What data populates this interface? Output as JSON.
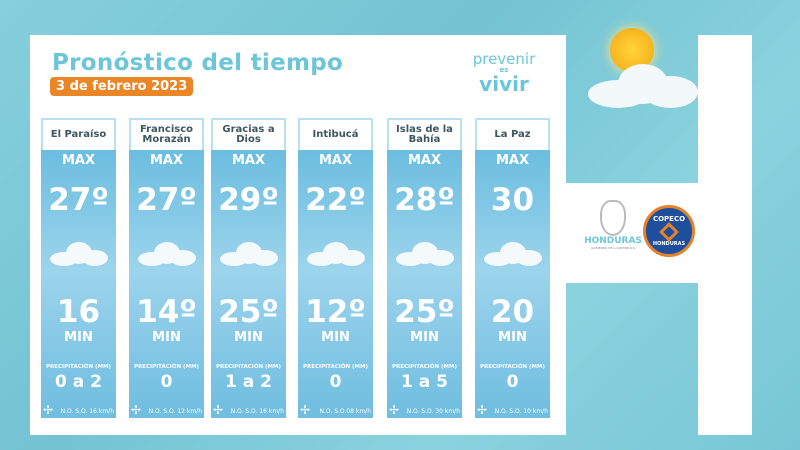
{
  "header": {
    "title": "Pronóstico del tiempo",
    "date": "3 de febrero 2023"
  },
  "brand": {
    "line1": "prevenir",
    "line2": "es",
    "line3": "vivir"
  },
  "labels": {
    "max": "MAX",
    "min": "MIN",
    "precip": "PRECIPITACIÓN (MM)"
  },
  "columns": [
    {
      "name": "El Paraíso",
      "max": "27º",
      "min": "16",
      "precip": "0 a 2",
      "wind": "N.O. S.O. 16 km/h"
    },
    {
      "name": "Francisco Morazán",
      "max": "27º",
      "min": "14º",
      "precip": "0",
      "wind": "N.O. S.O. 12 km/h"
    },
    {
      "name": "Gracias a Dios",
      "max": "29º",
      "min": "25º",
      "precip": "1 a 2",
      "wind": "N.O. S.O. 16 km/h"
    },
    {
      "name": "Intibucá",
      "max": "22º",
      "min": "12º",
      "precip": "0",
      "wind": "N.O. S.O.08 km/h"
    },
    {
      "name": "Islas de la Bahía",
      "max": "28º",
      "min": "25º",
      "precip": "1 a 5",
      "wind": "N.O. S.O. 30 km/h"
    },
    {
      "name": "La Paz",
      "max": "30",
      "min": "20",
      "precip": "0",
      "wind": "N.O. S.O. 10 km/h"
    }
  ],
  "logos": {
    "honduras": "HONDURAS",
    "honduras_sub": "GOBIERNO DE LA REPÚBLICA",
    "copeco_top": "COPECO",
    "copeco_bottom": "HONDURAS"
  },
  "colors": {
    "accent": "#6cc6d8",
    "date_badge": "#ea8626",
    "column": "#6bbde0",
    "background": "#7fcad8"
  }
}
